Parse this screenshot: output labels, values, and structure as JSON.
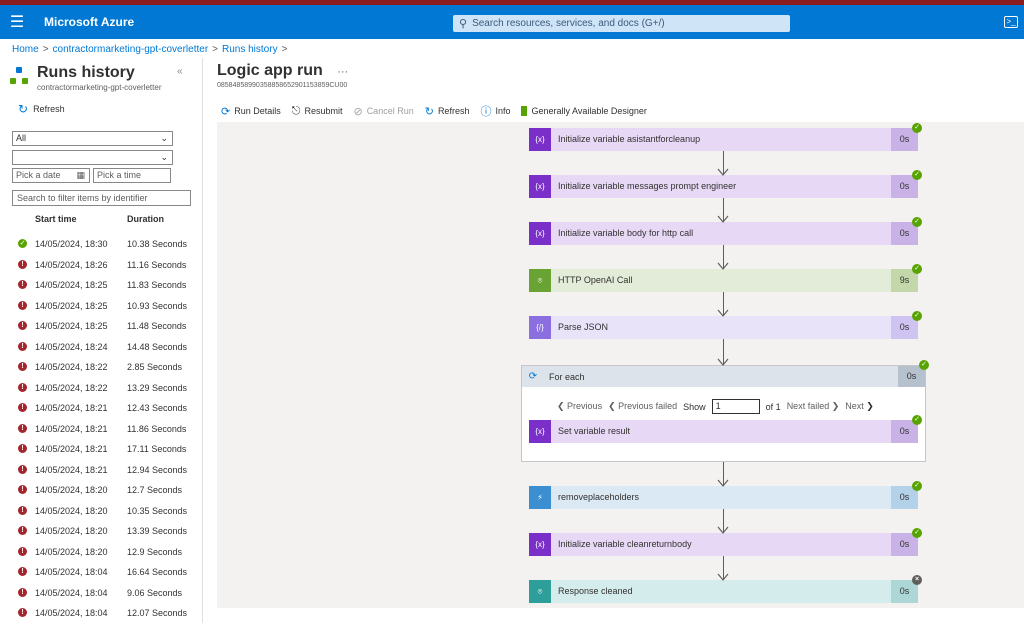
{
  "header": {
    "brand": "Microsoft Azure",
    "menu_icon": "☰",
    "search_placeholder": "Search resources, services, and docs (G+/)",
    "cloud_shell_icon": ">_"
  },
  "breadcrumb": [
    "Home",
    "contractormarketing-gpt-coverletter",
    "Runs history"
  ],
  "sidebar": {
    "title": "Runs history",
    "subtitle": "contractormarketing-gpt-coverletter",
    "collapse_icon": "«",
    "refresh_label": "Refresh",
    "status_filter": "All",
    "second_filter": "",
    "date_placeholder": "Pick a date",
    "time_placeholder": "Pick a time",
    "search_placeholder": "Search to filter items by identifier",
    "columns": {
      "start": "Start time",
      "duration": "Duration"
    },
    "runs": [
      {
        "status": "success",
        "start": "14/05/2024, 18:30",
        "duration": "10.38 Seconds"
      },
      {
        "status": "failed",
        "start": "14/05/2024, 18:26",
        "duration": "11.16 Seconds"
      },
      {
        "status": "failed",
        "start": "14/05/2024, 18:25",
        "duration": "11.83 Seconds"
      },
      {
        "status": "failed",
        "start": "14/05/2024, 18:25",
        "duration": "10.93 Seconds"
      },
      {
        "status": "failed",
        "start": "14/05/2024, 18:25",
        "duration": "11.48 Seconds"
      },
      {
        "status": "failed",
        "start": "14/05/2024, 18:24",
        "duration": "14.48 Seconds"
      },
      {
        "status": "failed",
        "start": "14/05/2024, 18:22",
        "duration": "2.85 Seconds"
      },
      {
        "status": "failed",
        "start": "14/05/2024, 18:22",
        "duration": "13.29 Seconds"
      },
      {
        "status": "failed",
        "start": "14/05/2024, 18:21",
        "duration": "12.43 Seconds"
      },
      {
        "status": "failed",
        "start": "14/05/2024, 18:21",
        "duration": "11.86 Seconds"
      },
      {
        "status": "failed",
        "start": "14/05/2024, 18:21",
        "duration": "17.11 Seconds"
      },
      {
        "status": "failed",
        "start": "14/05/2024, 18:21",
        "duration": "12.94 Seconds"
      },
      {
        "status": "failed",
        "start": "14/05/2024, 18:20",
        "duration": "12.7 Seconds"
      },
      {
        "status": "failed",
        "start": "14/05/2024, 18:20",
        "duration": "10.35 Seconds"
      },
      {
        "status": "failed",
        "start": "14/05/2024, 18:20",
        "duration": "13.39 Seconds"
      },
      {
        "status": "failed",
        "start": "14/05/2024, 18:20",
        "duration": "12.9 Seconds"
      },
      {
        "status": "failed",
        "start": "14/05/2024, 18:04",
        "duration": "16.64 Seconds"
      },
      {
        "status": "failed",
        "start": "14/05/2024, 18:04",
        "duration": "9.06 Seconds"
      },
      {
        "status": "failed",
        "start": "14/05/2024, 18:04",
        "duration": "12.07 Seconds"
      }
    ]
  },
  "main": {
    "title": "Logic app run",
    "more": "···",
    "run_id": "08584858990358858652901153859CU00",
    "toolbar": {
      "run_details": "Run Details",
      "resubmit": "Resubmit",
      "cancel_run": "Cancel Run",
      "refresh": "Refresh",
      "info": "Info",
      "designer": "Generally Available Designer"
    }
  },
  "workflow": {
    "steps": [
      {
        "name": "Initialize variable asistantforcleanup",
        "duration": "0s",
        "kind": "variable",
        "status": "success"
      },
      {
        "name": "Initialize variable messages prompt engineer",
        "duration": "0s",
        "kind": "variable",
        "status": "success"
      },
      {
        "name": "Initialize variable body for http call",
        "duration": "0s",
        "kind": "variable",
        "status": "success"
      },
      {
        "name": "HTTP OpenAI Call",
        "duration": "9s",
        "kind": "http",
        "status": "success"
      },
      {
        "name": "Parse JSON",
        "duration": "0s",
        "kind": "parse",
        "status": "success"
      },
      {
        "name": "removeplaceholders",
        "duration": "0s",
        "kind": "code",
        "status": "success"
      },
      {
        "name": "Initialize variable cleanreturnbody",
        "duration": "0s",
        "kind": "variable",
        "status": "success"
      },
      {
        "name": "Response cleaned",
        "duration": "0s",
        "kind": "response",
        "status": "skipped"
      }
    ],
    "foreach": {
      "name": "For each",
      "duration": "0s",
      "status": "success",
      "pager": {
        "previous": "Previous",
        "previous_failed": "Previous failed",
        "show": "Show",
        "page": "1",
        "of": "of 1",
        "next_failed": "Next failed",
        "next": "Next"
      },
      "inner_step": {
        "name": "Set variable result",
        "duration": "0s",
        "kind": "variable",
        "status": "success"
      }
    }
  },
  "colors": {
    "azure_blue": "#0078d4",
    "variable_icon": "#7a2fc8",
    "variable_body": "#e7d8f5",
    "variable_dur": "#c9b3e6",
    "http_icon": "#68a334",
    "http_body": "#e3ecd8",
    "http_dur": "#c4d7ab",
    "parse_icon": "#8b6fe0",
    "parse_body": "#e9e3fa",
    "parse_dur": "#cfc3f1",
    "code_icon": "#3b8ed0",
    "code_body": "#dbe9f5",
    "code_dur": "#b4d1ea",
    "response_icon": "#2e9e9a",
    "response_body": "#d5ecec",
    "response_dur": "#acd7d6",
    "success": "#57a300",
    "failed": "#a4262c"
  }
}
